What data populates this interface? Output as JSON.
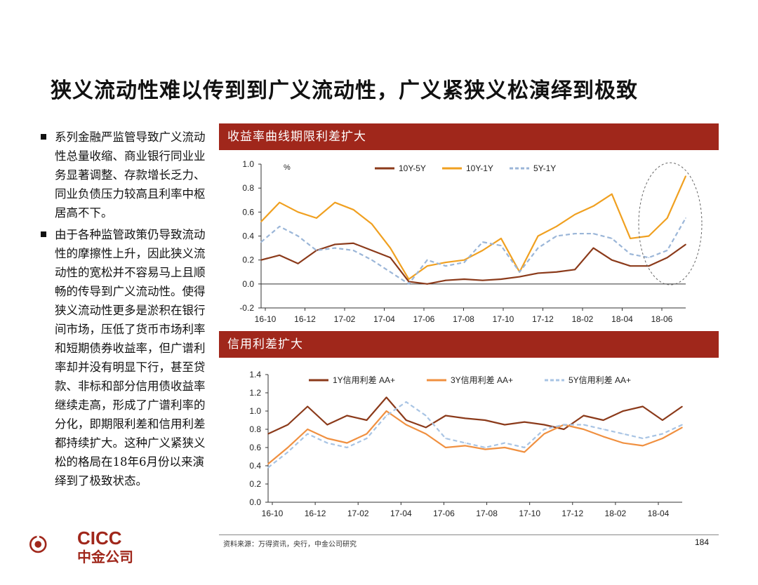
{
  "title": "狭义流动性难以传到到广义流动性，广义紧狭义松演绎到极致",
  "bullets": [
    "系列金融严监管导致广义流动性总量收缩、商业银行同业业务显著调整、存款增长乏力、同业负债压力较高且利率中枢居高不下。",
    "由于各种监管政策仍导致流动性的摩擦性上升，因此狭义流动性的宽松并不容易马上且顺畅的传导到广义流动性。使得狭义流动性更多是淤积在银行间市场，压低了货币市场利率和短期债券收益率，但广谱利率却并没有明显下行，甚至贷款、非标和部分信用债收益率继续走高，形成了广谱利率的分化，即期限利差和信用利差都持续扩大。这种广义紧狭义松的格局在18年6月份以来演绎到了极致状态。"
  ],
  "footer": {
    "source": "资料来源：万得资讯，央行，中金公司研究",
    "page": "184"
  },
  "logo": {
    "line1": "CICC",
    "line2": "中金公司"
  },
  "colors": {
    "accent": "#a0271b"
  },
  "chart_data": [
    {
      "type": "line",
      "title": "收益率曲线期限利差扩大",
      "unit_label": "%",
      "ylim": [
        -0.2,
        1.0
      ],
      "yticks": [
        "1.0",
        "0.8",
        "0.6",
        "0.4",
        "0.2",
        "0.0",
        "-0.2"
      ],
      "xtick_labels": [
        "16-10",
        "16-12",
        "17-02",
        "17-04",
        "17-06",
        "17-08",
        "17-10",
        "17-12",
        "18-02",
        "18-04",
        "18-06"
      ],
      "legend": "top",
      "annotation": "dashed ellipse highlighting latest period",
      "x": [
        "16-10",
        "16-11",
        "16-12",
        "17-01",
        "17-02",
        "17-03",
        "17-04",
        "17-05",
        "17-06",
        "17-07",
        "17-08",
        "17-09",
        "17-10",
        "17-11",
        "17-12",
        "18-01",
        "18-02",
        "18-03",
        "18-04",
        "18-05",
        "18-06",
        "18-07",
        "18-08",
        "18-09"
      ],
      "series": [
        {
          "name": "10Y-5Y",
          "color": "#8b3a1a",
          "dash": "solid",
          "values": [
            0.2,
            0.24,
            0.17,
            0.28,
            0.33,
            0.34,
            0.28,
            0.22,
            0.02,
            0.0,
            0.03,
            0.04,
            0.03,
            0.04,
            0.06,
            0.09,
            0.1,
            0.12,
            0.3,
            0.2,
            0.15,
            0.15,
            0.22,
            0.33
          ]
        },
        {
          "name": "10Y-1Y",
          "color": "#f0a020",
          "dash": "solid",
          "values": [
            0.52,
            0.68,
            0.6,
            0.55,
            0.68,
            0.62,
            0.5,
            0.3,
            0.04,
            0.15,
            0.18,
            0.2,
            0.28,
            0.38,
            0.1,
            0.4,
            0.48,
            0.58,
            0.65,
            0.75,
            0.38,
            0.4,
            0.55,
            0.9
          ]
        },
        {
          "name": "5Y-1Y",
          "color": "#9bb6d8",
          "dash": "dashed",
          "values": [
            0.35,
            0.48,
            0.4,
            0.28,
            0.3,
            0.28,
            0.2,
            0.1,
            0.0,
            0.2,
            0.15,
            0.18,
            0.35,
            0.32,
            0.1,
            0.3,
            0.4,
            0.42,
            0.42,
            0.38,
            0.25,
            0.22,
            0.28,
            0.55
          ]
        }
      ]
    },
    {
      "type": "line",
      "title": "信用利差扩大",
      "ylim": [
        0.0,
        1.4
      ],
      "yticks": [
        "1.4",
        "1.2",
        "1.0",
        "0.8",
        "0.6",
        "0.4",
        "0.2",
        "0.0"
      ],
      "xtick_labels": [
        "16-10",
        "16-12",
        "17-02",
        "17-04",
        "17-06",
        "17-08",
        "17-10",
        "17-12",
        "18-02",
        "18-04"
      ],
      "legend": "top",
      "x": [
        "16-10",
        "16-11",
        "16-12",
        "17-01",
        "17-02",
        "17-03",
        "17-04",
        "17-05",
        "17-06",
        "17-07",
        "17-08",
        "17-09",
        "17-10",
        "17-11",
        "17-12",
        "18-01",
        "18-02",
        "18-03",
        "18-04",
        "18-05",
        "18-06",
        "18-07"
      ],
      "series": [
        {
          "name": "1Y信用利差 AA+",
          "color": "#8b3a1a",
          "dash": "solid",
          "values": [
            0.75,
            0.85,
            1.05,
            0.85,
            0.95,
            0.9,
            1.15,
            0.9,
            0.82,
            0.95,
            0.92,
            0.9,
            0.85,
            0.88,
            0.85,
            0.8,
            0.95,
            0.9,
            1.0,
            1.05,
            0.9,
            1.05
          ]
        },
        {
          "name": "3Y信用利差 AA+",
          "color": "#f09040",
          "dash": "solid",
          "values": [
            0.42,
            0.6,
            0.8,
            0.7,
            0.65,
            0.75,
            1.0,
            0.85,
            0.75,
            0.6,
            0.62,
            0.58,
            0.6,
            0.55,
            0.75,
            0.85,
            0.8,
            0.72,
            0.65,
            0.62,
            0.7,
            0.82
          ]
        },
        {
          "name": "5Y信用利差 AA+",
          "color": "#a8c4e4",
          "dash": "dashed",
          "values": [
            0.38,
            0.55,
            0.75,
            0.65,
            0.6,
            0.7,
            0.95,
            1.1,
            0.95,
            0.7,
            0.65,
            0.6,
            0.65,
            0.6,
            0.8,
            0.85,
            0.85,
            0.8,
            0.75,
            0.7,
            0.75,
            0.85
          ]
        }
      ]
    }
  ]
}
